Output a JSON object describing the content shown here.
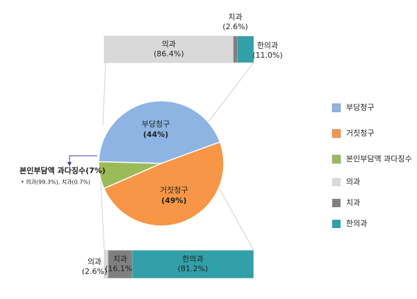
{
  "chart_data": [
    {
      "type": "pie",
      "categories": [
        "부당청구",
        "거짓청구",
        "본인부담액 과다징수"
      ],
      "values": [
        44,
        49,
        7
      ],
      "value_labels": [
        "(44%)",
        "(49%)",
        "(7%)"
      ],
      "colors": [
        "#8db4e2",
        "#f79646",
        "#9bbb59"
      ],
      "annotation": "• 의과(99.3%), 치과(0.7%)"
    },
    {
      "type": "stacked_bar",
      "categories": [
        null,
        null
      ],
      "xlim": [
        0,
        100
      ],
      "series": [
        {
          "name": "의과",
          "color": "#d9d9d9",
          "values": [
            86.4,
            2.6
          ],
          "value_labels": [
            "(86.4%)",
            "(2.6%)"
          ]
        },
        {
          "name": "치과",
          "color": "#808080",
          "values": [
            2.6,
            16.1
          ],
          "value_labels": [
            "(2.6%)",
            "(16.1%)"
          ]
        },
        {
          "name": "한의과",
          "color": "#31a0a8",
          "values": [
            11.0,
            81.2
          ],
          "value_labels": [
            "(11.0%)",
            "(81.2%)"
          ]
        }
      ]
    }
  ]
}
